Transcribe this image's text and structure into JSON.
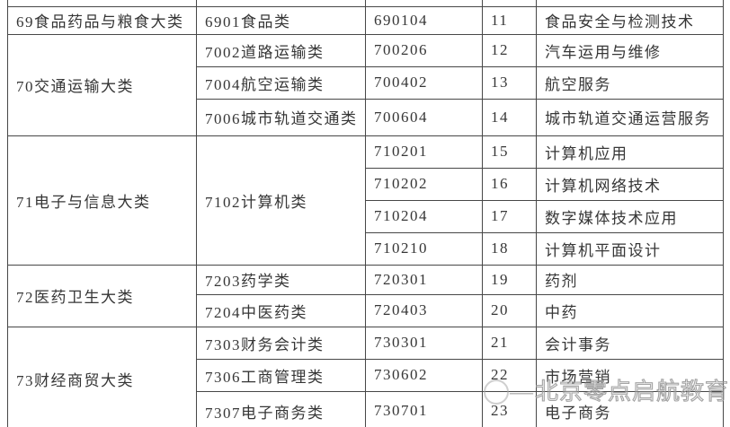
{
  "table": {
    "rows": [
      {
        "cat": {
          "text": "69食品药品与粮食大类",
          "rowspan": 1
        },
        "sub": {
          "text": "6901食品类",
          "rowspan": 1
        },
        "code": "690104",
        "num": "11",
        "name": "食品安全与检测技术"
      },
      {
        "cat": {
          "text": "70交通运输大类",
          "rowspan": 3
        },
        "sub": {
          "text": "7002道路运输类",
          "rowspan": 1
        },
        "code": "700206",
        "num": "12",
        "name": "汽车运用与维修"
      },
      {
        "sub": {
          "text": "7004航空运输类",
          "rowspan": 1
        },
        "code": "700402",
        "num": "13",
        "name": "航空服务"
      },
      {
        "sub": {
          "text": "7006城市轨道交通类",
          "rowspan": 1
        },
        "code": "700604",
        "num": "14",
        "name": "城市轨道交通运营服务"
      },
      {
        "cat": {
          "text": "71电子与信息大类",
          "rowspan": 4
        },
        "sub": {
          "text": "7102计算机类",
          "rowspan": 4
        },
        "code": "710201",
        "num": "15",
        "name": "计算机应用"
      },
      {
        "code": "710202",
        "num": "16",
        "name": "计算机网络技术"
      },
      {
        "code": "710204",
        "num": "17",
        "name": "数字媒体技术应用"
      },
      {
        "code": "710210",
        "num": "18",
        "name": "计算机平面设计"
      },
      {
        "cat": {
          "text": "72医药卫生大类",
          "rowspan": 2
        },
        "sub": {
          "text": "7203药学类",
          "rowspan": 1
        },
        "code": "720301",
        "num": "19",
        "name": "药剂"
      },
      {
        "sub": {
          "text": "7204中医药类",
          "rowspan": 1
        },
        "code": "720403",
        "num": "20",
        "name": "中药"
      },
      {
        "cat": {
          "text": "73财经商贸大类",
          "rowspan": 3
        },
        "sub": {
          "text": "7303财务会计类",
          "rowspan": 1
        },
        "code": "730301",
        "num": "21",
        "name": "会计事务"
      },
      {
        "sub": {
          "text": "7306工商管理类",
          "rowspan": 1
        },
        "code": "730602",
        "num": "22",
        "name": "市场营销"
      },
      {
        "sub": {
          "text": "7307电子商务类",
          "rowspan": 1
        },
        "code": "730701",
        "num": "23",
        "name": "电子商务"
      }
    ]
  },
  "watermark": {
    "dash": "—",
    "text": "北京零点启航教育"
  },
  "colors": {
    "border": "#474747",
    "text": "#363636",
    "watermark_gray": "#a8a8a8",
    "background": "#ffffff"
  }
}
